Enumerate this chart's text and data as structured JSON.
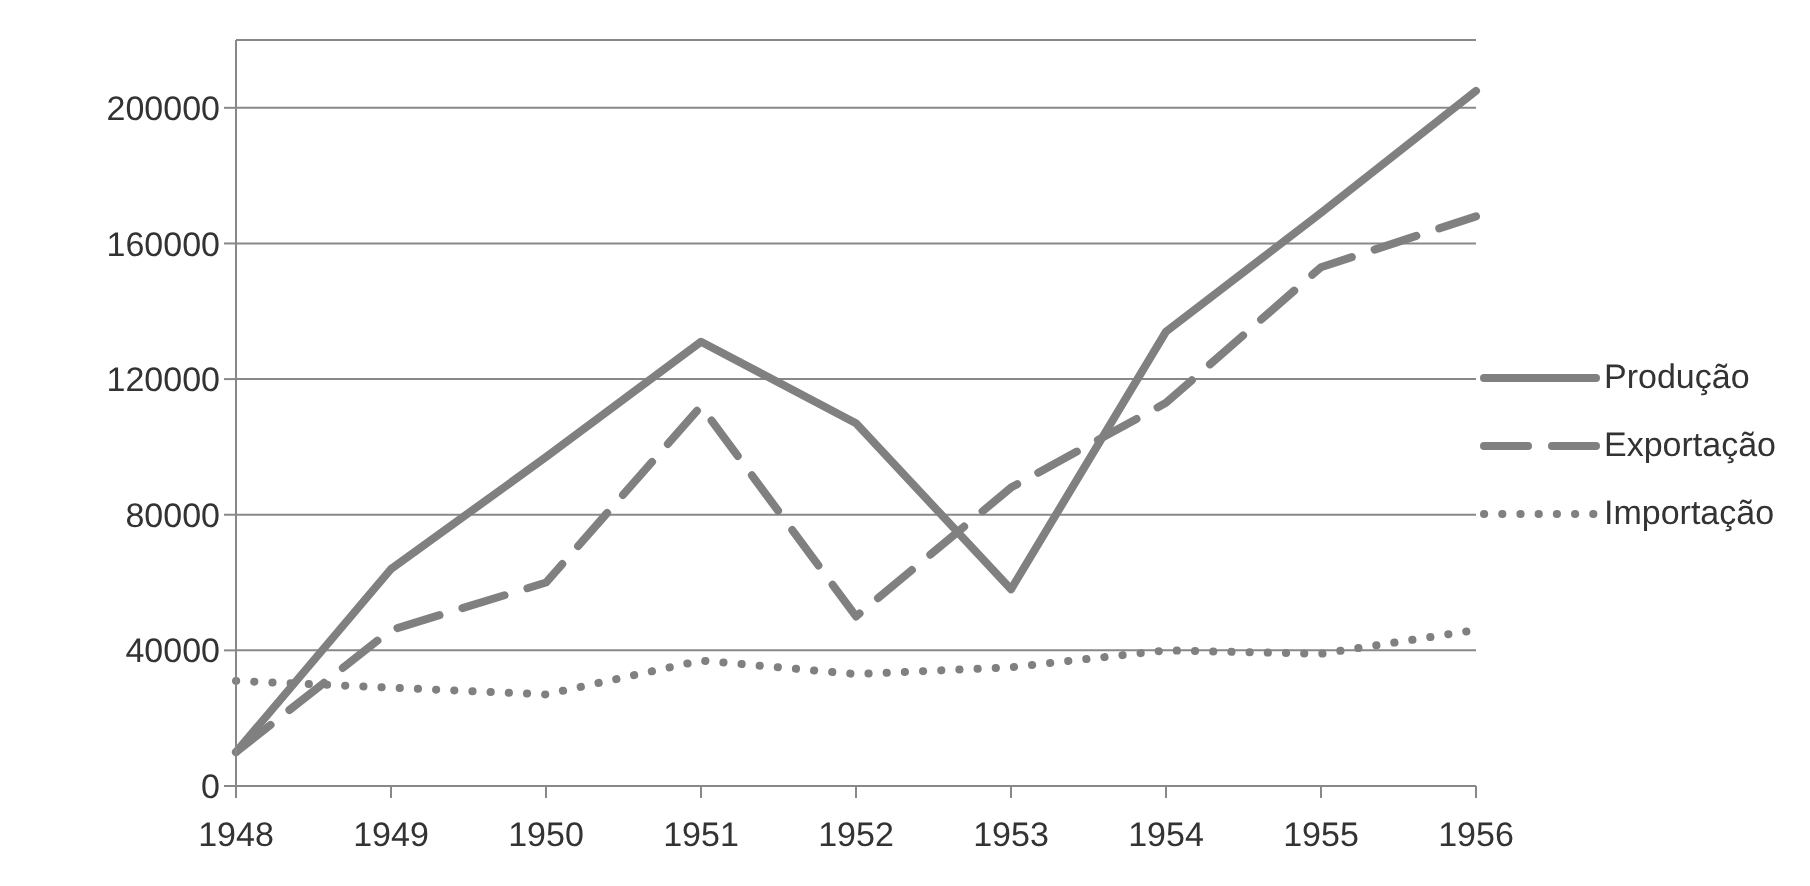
{
  "chart_data": {
    "type": "line",
    "categories": [
      "1948",
      "1949",
      "1950",
      "1951",
      "1952",
      "1953",
      "1954",
      "1955",
      "1956"
    ],
    "series": [
      {
        "name": "Produção",
        "color": "#808080",
        "line_style": "solid",
        "values": [
          10000,
          64000,
          97000,
          131000,
          107000,
          58000,
          134000,
          169000,
          205000
        ]
      },
      {
        "name": "Exportação",
        "color": "#808080",
        "line_style": "dashed",
        "values": [
          10000,
          46000,
          60000,
          112000,
          50000,
          88000,
          113000,
          153000,
          168000
        ]
      },
      {
        "name": "Importação",
        "color": "#808080",
        "line_style": "dotted",
        "values": [
          31000,
          29000,
          27000,
          37000,
          33000,
          35000,
          40000,
          39000,
          46000
        ]
      }
    ],
    "ylim": [
      0,
      220000
    ],
    "yticks": [
      0,
      40000,
      80000,
      120000,
      160000,
      200000
    ],
    "grid": "y",
    "legend": "right",
    "marker": "none"
  }
}
